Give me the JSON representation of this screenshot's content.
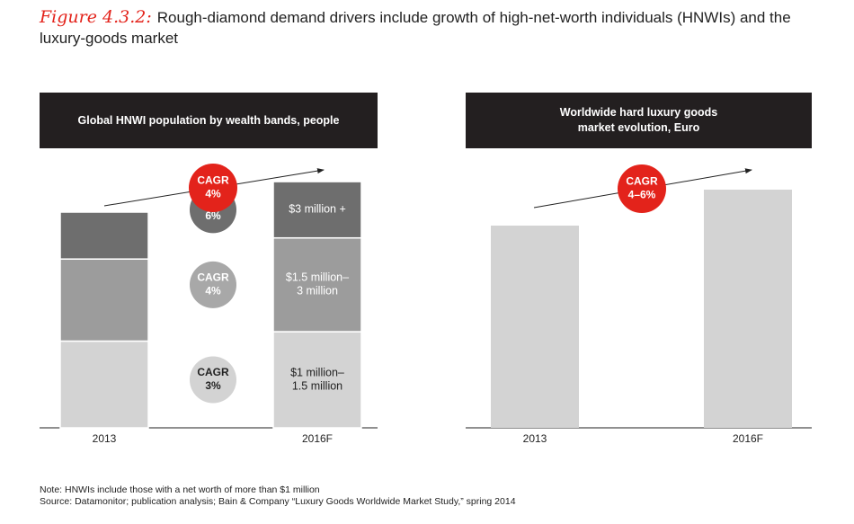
{
  "figure": {
    "label": "Figure 4.3.2:",
    "title": "Rough-diamond demand drivers include growth of high-net-worth individuals (HNWIs) and the luxury-goods market"
  },
  "chart_data": [
    {
      "type": "bar",
      "title": "Global HNWI population by wealth bands, people",
      "stacked": true,
      "categories": [
        "2013",
        "2016F"
      ],
      "series": [
        {
          "name": "$1 million–\n1.5 million",
          "values": [
            37,
            41
          ],
          "color": "#d3d3d3",
          "cagr": "CAGR\n3%",
          "cagr_color": "#d3d3d3",
          "cagr_text_color": "#222222"
        },
        {
          "name": "$1.5 million–\n3 million",
          "values": [
            35,
            40
          ],
          "color": "#9c9c9c",
          "cagr": "CAGR\n4%",
          "cagr_color": "#a8a8a8",
          "cagr_text_color": "#ffffff"
        },
        {
          "name": "$3 million +",
          "values": [
            20,
            24
          ],
          "color": "#6e6e6e",
          "cagr": "CAGR\n6%",
          "cagr_color": "#6e6e6e",
          "cagr_text_color": "#ffffff"
        }
      ],
      "overall_cagr": "CAGR\n4%",
      "ylim": [
        0,
        115
      ],
      "xlabel": "",
      "ylabel": ""
    },
    {
      "type": "bar",
      "title": "Worldwide hard luxury goods\nmarket evolution, Euro",
      "categories": [
        "2013",
        "2016F"
      ],
      "values": [
        90,
        106
      ],
      "color": "#d3d3d3",
      "overall_cagr": "CAGR\n4–6%",
      "ylim": [
        0,
        120
      ],
      "xlabel": "",
      "ylabel": ""
    }
  ],
  "colors": {
    "accent": "#e3231b",
    "header_bg": "#231f20"
  },
  "footnotes": {
    "note": "Note:  HNWIs include those with a net worth of more than $1 million",
    "source": "Source:  Datamonitor; publication analysis; Bain & Company “Luxury Goods Worldwide Market Study,” spring 2014"
  }
}
